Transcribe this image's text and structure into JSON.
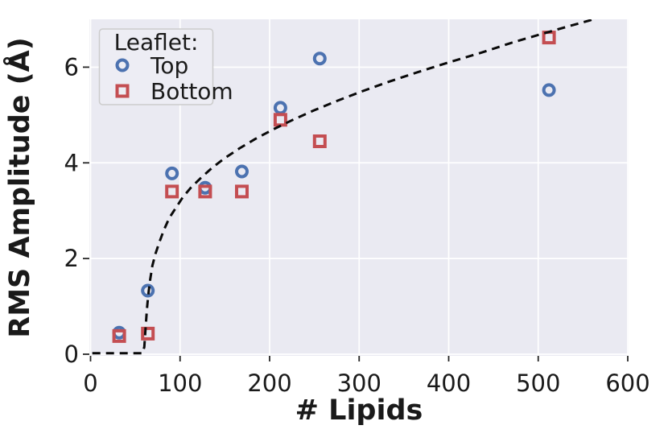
{
  "chart_data": {
    "type": "scatter",
    "title": "",
    "xlabel": "# Lipids",
    "ylabel": "RMS Amplitude (Å)",
    "xlim": [
      0,
      600
    ],
    "ylim": [
      0,
      7
    ],
    "x_ticks": [
      0,
      100,
      200,
      300,
      400,
      500,
      600
    ],
    "y_ticks": [
      0,
      2,
      4,
      6
    ],
    "grid": true,
    "plot_background": "#EAEAF2",
    "gridline_color": "#FFFFFF",
    "legend": {
      "title": "Leaflet:",
      "position": "upper left",
      "entries": [
        {
          "label": "Top",
          "marker": "circle",
          "color": "#4C72B0"
        },
        {
          "label": "Bottom",
          "marker": "square",
          "color": "#C44E52"
        }
      ]
    },
    "series": [
      {
        "name": "Top",
        "marker": "circle",
        "color": "#4C72B0",
        "points": [
          [
            32,
            0.45
          ],
          [
            64,
            1.33
          ],
          [
            91,
            3.78
          ],
          [
            128,
            3.48
          ],
          [
            169,
            3.82
          ],
          [
            212,
            5.15
          ],
          [
            256,
            6.18
          ],
          [
            512,
            5.52
          ]
        ]
      },
      {
        "name": "Bottom",
        "marker": "square",
        "color": "#C44E52",
        "points": [
          [
            32,
            0.38
          ],
          [
            64,
            0.43
          ],
          [
            91,
            3.4
          ],
          [
            128,
            3.4
          ],
          [
            169,
            3.4
          ],
          [
            212,
            4.9
          ],
          [
            256,
            4.45
          ],
          [
            512,
            6.62
          ]
        ]
      }
    ],
    "fit_line": {
      "style": "dashed",
      "color": "#0a0a0a",
      "description": "logarithmic-type fit, zero below ~60 lipids",
      "points": [
        [
          2,
          0.02
        ],
        [
          40,
          0.02
        ],
        [
          58,
          0.02
        ],
        [
          60,
          0.15
        ],
        [
          61.5,
          0.55
        ],
        [
          63,
          0.95
        ],
        [
          64.5,
          1.25
        ],
        [
          66.5,
          1.55
        ],
        [
          69,
          1.85
        ],
        [
          72.5,
          2.1
        ],
        [
          77,
          2.35
        ],
        [
          82,
          2.6
        ],
        [
          88,
          2.85
        ],
        [
          95,
          3.05
        ],
        [
          103,
          3.28
        ],
        [
          112,
          3.48
        ],
        [
          123,
          3.68
        ],
        [
          136,
          3.9
        ],
        [
          150,
          4.1
        ],
        [
          166,
          4.3
        ],
        [
          184,
          4.5
        ],
        [
          204,
          4.7
        ],
        [
          226,
          4.9
        ],
        [
          250,
          5.1
        ],
        [
          276,
          5.3
        ],
        [
          304,
          5.5
        ],
        [
          334,
          5.7
        ],
        [
          366,
          5.9
        ],
        [
          400,
          6.1
        ],
        [
          436,
          6.3
        ],
        [
          472,
          6.52
        ],
        [
          505,
          6.7
        ],
        [
          535,
          6.86
        ],
        [
          558,
          6.98
        ],
        [
          570,
          7.06
        ]
      ]
    }
  }
}
